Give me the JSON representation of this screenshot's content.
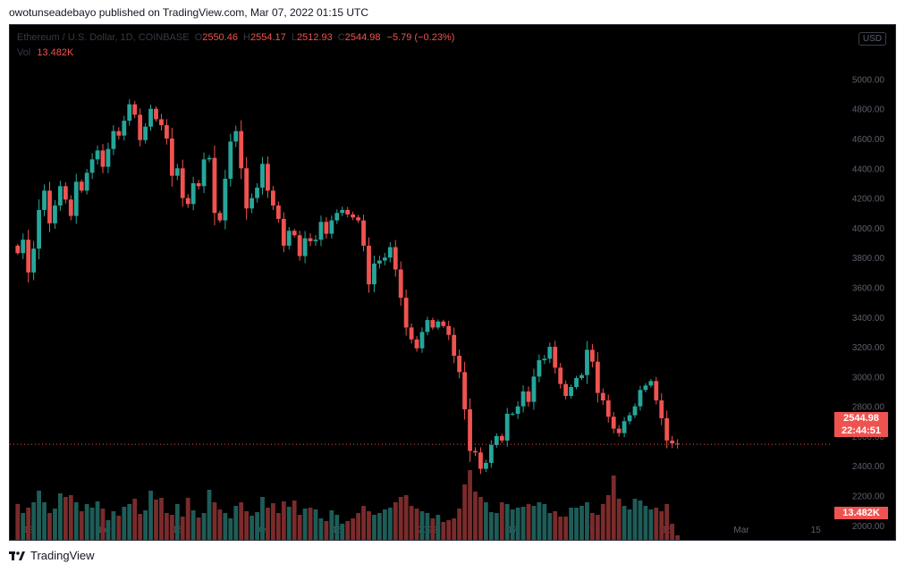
{
  "header": {
    "published_text": "owotunseadebayo published on TradingView.com, Mar 07, 2022 01:15 UTC"
  },
  "legend": {
    "symbol": "Ethereum / U.S. Dollar, 1D, COINBASE",
    "o_label": "O",
    "open": "2550.46",
    "h_label": "H",
    "high": "2554.17",
    "l_label": "L",
    "low": "2512.93",
    "c_label": "C",
    "close": "2544.98",
    "change": "−5.79 (−0.23%)",
    "vol_label": "Vol",
    "volume": "13.482K"
  },
  "price_scale": {
    "currency": "USD",
    "last_price": "2544.98",
    "countdown": "22:44:51",
    "last_volume": "13.482K"
  },
  "footer": {
    "brand": "TradingView"
  },
  "colors": {
    "up": "#26a69a",
    "down": "#ef5350",
    "up_volume": "#1e5c57",
    "down_volume": "#7a2b2b",
    "axis_text": "#5d606b",
    "background": "#000000"
  },
  "chart_data": {
    "type": "candlestick",
    "y_ticks": [
      "5000.00",
      "4800.00",
      "4600.00",
      "4400.00",
      "4200.00",
      "4000.00",
      "3800.00",
      "3600.00",
      "3400.00",
      "3200.00",
      "3000.00",
      "2800.00",
      "2600.00",
      "2400.00",
      "2200.00",
      "2000.00"
    ],
    "y_range": [
      1900,
      5100
    ],
    "x_ticks": [
      "18",
      "Nov",
      "15",
      "Dec",
      "15",
      "2022",
      "17",
      "Feb",
      "15",
      "Mar",
      "15"
    ],
    "x_tick_days": [
      -14,
      0,
      14,
      30,
      44,
      61,
      77,
      92,
      106,
      120,
      134
    ],
    "x_range": [
      -17,
      145
    ],
    "last_close": 2544.98,
    "start_price": 3880,
    "closes": [
      3830,
      3920,
      3700,
      3860,
      4120,
      4250,
      4030,
      4150,
      4280,
      4190,
      4080,
      4310,
      4250,
      4370,
      4460,
      4520,
      4410,
      4530,
      4650,
      4620,
      4720,
      4830,
      4760,
      4590,
      4680,
      4800,
      4730,
      4690,
      4600,
      4350,
      4400,
      4200,
      4160,
      4300,
      4280,
      4460,
      4470,
      4100,
      4050,
      4330,
      4580,
      4650,
      4400,
      4130,
      4200,
      4270,
      4430,
      4250,
      4150,
      4060,
      3880,
      3980,
      3950,
      3810,
      3930,
      3910,
      3920,
      4040,
      3960,
      4050,
      4100,
      4120,
      4090,
      4070,
      4050,
      3880,
      3620,
      3760,
      3780,
      3800,
      3870,
      3720,
      3530,
      3330,
      3250,
      3190,
      3300,
      3380,
      3330,
      3370,
      3340,
      3280,
      3140,
      3030,
      2780,
      2500,
      2490,
      2380,
      2420,
      2540,
      2600,
      2570,
      2750,
      2750,
      2800,
      2900,
      2830,
      3000,
      3110,
      3120,
      3200,
      3060,
      2950,
      2870,
      2930,
      2990,
      3010,
      3180,
      3100,
      2890,
      2840,
      2730,
      2650,
      2620,
      2700,
      2740,
      2800,
      2910,
      2940,
      2970,
      2840,
      2720,
      2570,
      2550,
      2544.98
    ],
    "volumes": [
      0.4,
      0.3,
      0.36,
      0.42,
      0.55,
      0.42,
      0.3,
      0.35,
      0.52,
      0.48,
      0.5,
      0.42,
      0.32,
      0.4,
      0.36,
      0.43,
      0.35,
      0.22,
      0.32,
      0.27,
      0.37,
      0.4,
      0.46,
      0.29,
      0.33,
      0.55,
      0.45,
      0.47,
      0.3,
      0.28,
      0.4,
      0.26,
      0.47,
      0.33,
      0.25,
      0.3,
      0.56,
      0.42,
      0.34,
      0.3,
      0.24,
      0.38,
      0.42,
      0.32,
      0.27,
      0.31,
      0.48,
      0.36,
      0.41,
      0.3,
      0.43,
      0.37,
      0.44,
      0.28,
      0.35,
      0.36,
      0.34,
      0.24,
      0.21,
      0.33,
      0.28,
      0.18,
      0.21,
      0.24,
      0.3,
      0.38,
      0.32,
      0.28,
      0.3,
      0.34,
      0.36,
      0.42,
      0.48,
      0.5,
      0.38,
      0.35,
      0.32,
      0.3,
      0.24,
      0.28,
      0.2,
      0.22,
      0.24,
      0.35,
      0.62,
      0.78,
      0.54,
      0.48,
      0.42,
      0.31,
      0.3,
      0.42,
      0.4,
      0.34,
      0.36,
      0.37,
      0.4,
      0.38,
      0.42,
      0.4,
      0.3,
      0.32,
      0.26,
      0.26,
      0.36,
      0.36,
      0.38,
      0.42,
      0.3,
      0.28,
      0.4,
      0.5,
      0.72,
      0.46,
      0.38,
      0.34,
      0.46,
      0.44,
      0.38,
      0.34,
      0.36,
      0.32,
      0.4,
      0.18,
      0.05
    ]
  }
}
